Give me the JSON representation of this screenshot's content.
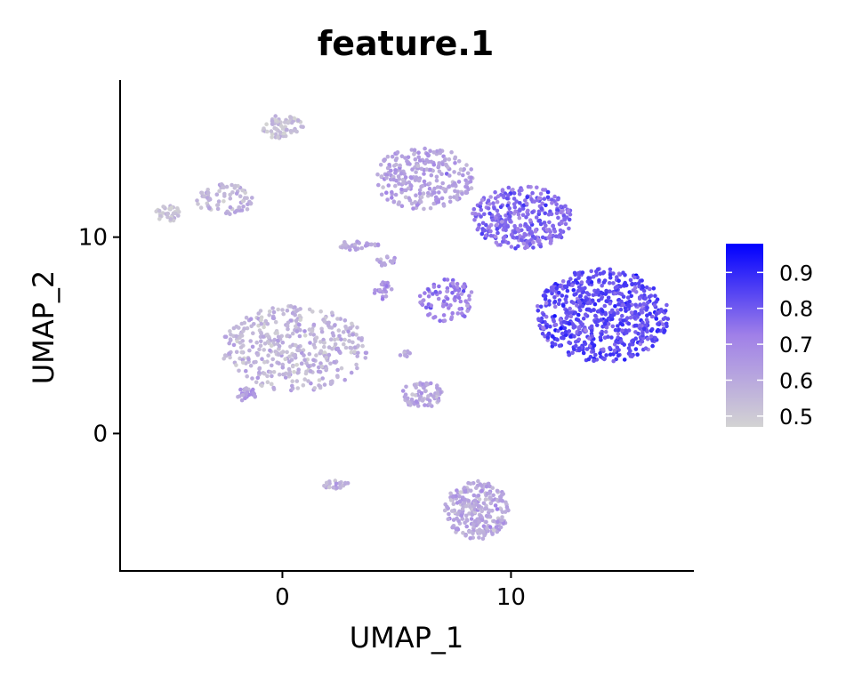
{
  "chart_data": {
    "type": "scatter",
    "title": "feature.1",
    "xlabel": "UMAP_1",
    "ylabel": "UMAP_2",
    "xlim": [
      -7.1,
      18.0
    ],
    "ylim": [
      -7.0,
      18.0
    ],
    "x_ticks": [
      0,
      10
    ],
    "y_ticks": [
      0,
      10
    ],
    "grid": false,
    "color_scale": {
      "low_color": "#d3d3d3",
      "high_color": "#0000ff",
      "range": [
        0.47,
        0.98
      ],
      "ticks": [
        0.5,
        0.6,
        0.7,
        0.8,
        0.9
      ],
      "legend_position": "right"
    },
    "clusters": [
      {
        "cx": 0.0,
        "cy": 15.6,
        "rx": 0.9,
        "ry": 0.6,
        "n": 70,
        "value": 0.52
      },
      {
        "cx": -5.0,
        "cy": 11.2,
        "rx": 0.55,
        "ry": 0.4,
        "n": 35,
        "value": 0.51
      },
      {
        "cx": -2.5,
        "cy": 11.9,
        "rx": 1.3,
        "ry": 0.8,
        "n": 80,
        "value": 0.56
      },
      {
        "cx": 3.2,
        "cy": 9.6,
        "rx": 1.0,
        "ry": 0.25,
        "n": 30,
        "value": 0.6
      },
      {
        "cx": 4.5,
        "cy": 8.8,
        "rx": 0.5,
        "ry": 0.3,
        "n": 15,
        "value": 0.62
      },
      {
        "cx": 0.5,
        "cy": 4.3,
        "rx": 3.2,
        "ry": 2.2,
        "n": 420,
        "value": 0.56
      },
      {
        "cx": -1.6,
        "cy": 2.0,
        "rx": 0.45,
        "ry": 0.35,
        "n": 30,
        "value": 0.62
      },
      {
        "cx": 6.1,
        "cy": 2.0,
        "rx": 0.9,
        "ry": 0.7,
        "n": 75,
        "value": 0.6
      },
      {
        "cx": 5.4,
        "cy": 4.0,
        "rx": 0.3,
        "ry": 0.3,
        "n": 8,
        "value": 0.62
      },
      {
        "cx": 7.2,
        "cy": 6.8,
        "rx": 1.2,
        "ry": 1.1,
        "n": 90,
        "value": 0.72
      },
      {
        "cx": 4.4,
        "cy": 7.3,
        "rx": 0.4,
        "ry": 0.45,
        "n": 20,
        "value": 0.66
      },
      {
        "cx": 6.2,
        "cy": 13.0,
        "rx": 2.2,
        "ry": 1.6,
        "n": 260,
        "value": 0.62
      },
      {
        "cx": 10.5,
        "cy": 11.0,
        "rx": 2.2,
        "ry": 1.6,
        "n": 330,
        "value": 0.77
      },
      {
        "cx": 14.0,
        "cy": 6.0,
        "rx": 2.9,
        "ry": 2.4,
        "n": 650,
        "value": 0.83
      },
      {
        "cx": 2.4,
        "cy": -2.6,
        "rx": 0.6,
        "ry": 0.25,
        "n": 22,
        "value": 0.58
      },
      {
        "cx": 8.5,
        "cy": -3.9,
        "rx": 1.4,
        "ry": 1.5,
        "n": 260,
        "value": 0.6
      }
    ]
  }
}
